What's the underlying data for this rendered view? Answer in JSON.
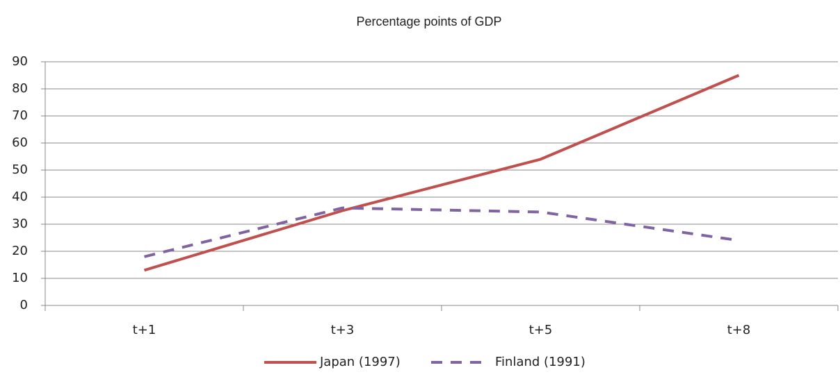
{
  "chart_data": {
    "type": "line",
    "title": "Percentage points of GDP",
    "categories": [
      "t+1",
      "t+3",
      "t+5",
      "t+8"
    ],
    "series": [
      {
        "name": "Japan (1997)",
        "color": "#c0504d",
        "dash": false,
        "values": [
          13,
          35,
          54,
          85
        ]
      },
      {
        "name": "Finland (1991)",
        "color": "#8064a2",
        "dash": true,
        "values": [
          18,
          36,
          34.5,
          24
        ]
      }
    ],
    "ylim": [
      0,
      90
    ],
    "yticks": [
      0,
      10,
      20,
      30,
      40,
      50,
      60,
      70,
      80,
      90
    ],
    "grid": true,
    "legend": "bottom"
  }
}
